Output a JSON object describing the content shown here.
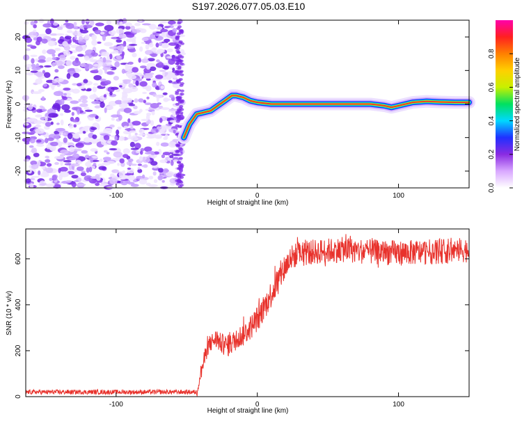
{
  "title": "S197.2026.077.05.03.E10",
  "colors": {
    "snr_line": "#e8322c",
    "noise_purple": "#7a28e8",
    "track_core": "#e8322c",
    "track_edge": "#1030ff"
  },
  "chart_data": [
    {
      "type": "heatmap",
      "name": "spectrogram",
      "xlabel": "Height of straight line (km)",
      "ylabel": "Frequency (Hz)",
      "xlim": [
        -164,
        150
      ],
      "ylim": [
        -25,
        25
      ],
      "xticks": [
        -100,
        0,
        100
      ],
      "xtick_labels": [
        "-100",
        "0",
        "100"
      ],
      "yticks": [
        -20,
        -10,
        0,
        10,
        20
      ],
      "ytick_labels": [
        "-20",
        "-10",
        "0",
        "10",
        "20"
      ],
      "noise_region_x": [
        -164,
        -53
      ],
      "track": {
        "x": [
          -52,
          -48,
          -43,
          -38,
          -33,
          -28,
          -23,
          -18,
          -15,
          -10,
          -5,
          0,
          10,
          20,
          40,
          60,
          80,
          90,
          95,
          100,
          105,
          110,
          120,
          130,
          140,
          150
        ],
        "y": [
          -10,
          -6,
          -3,
          -2.5,
          -2,
          -0.5,
          1,
          2.5,
          2.5,
          2,
          1,
          0.5,
          0,
          0,
          0,
          0,
          0,
          -0.5,
          -1,
          -0.5,
          0,
          0.5,
          0.8,
          0.6,
          0.5,
          0.5
        ]
      },
      "colorbar": {
        "label": "Normalized spectral amplitude",
        "range": [
          0,
          1
        ],
        "ticks": [
          0.0,
          0.2,
          0.4,
          0.6,
          0.8
        ],
        "tick_labels": [
          "0.0",
          "0.2",
          "0.4",
          "0.6",
          "0.8"
        ],
        "colors": [
          "#ffffff",
          "#d9a8ff",
          "#8a2be2",
          "#2030ff",
          "#00d8ff",
          "#00e060",
          "#c8f000",
          "#ffd000",
          "#ff8000",
          "#ff2020",
          "#ff00aa"
        ]
      }
    },
    {
      "type": "line",
      "name": "snr",
      "xlabel": "Height of straight line (km)",
      "ylabel": "SNR (10 * v/v)",
      "xlim": [
        -164,
        150
      ],
      "ylim": [
        0,
        730
      ],
      "xticks": [
        -100,
        0,
        100
      ],
      "xtick_labels": [
        "-100",
        "0",
        "100"
      ],
      "yticks": [
        0,
        200,
        400,
        600
      ],
      "ytick_labels": [
        "0",
        "200",
        "400",
        "600"
      ],
      "series": [
        {
          "name": "SNR",
          "x": [
            -164,
            -100,
            -60,
            -43,
            -41,
            -38,
            -35,
            -30,
            -25,
            -20,
            -15,
            -10,
            -5,
            0,
            5,
            10,
            15,
            20,
            25,
            30,
            40,
            50,
            60,
            80,
            100,
            120,
            140,
            150
          ],
          "y": [
            20,
            20,
            20,
            20,
            80,
            150,
            220,
            250,
            230,
            220,
            250,
            270,
            300,
            340,
            390,
            450,
            510,
            570,
            610,
            620,
            630,
            635,
            640,
            630,
            625,
            630,
            635,
            640
          ]
        }
      ]
    }
  ]
}
